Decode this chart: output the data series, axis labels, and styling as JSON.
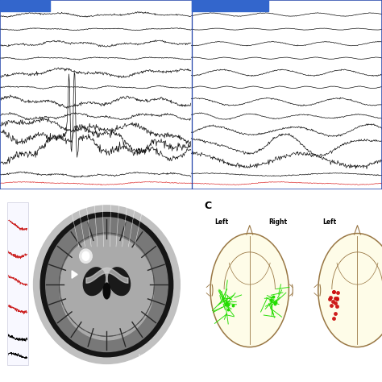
{
  "eeg_bg": "#f0f2f8",
  "eeg_line_color": "#111111",
  "eeg_red_color": "#dd3333",
  "header_color": "#3366cc",
  "divider_color": "#2244aa",
  "panel_border": "#3344aa",
  "panel_c_bg": "#fefce8",
  "green_color": "#22dd00",
  "red_dot_color": "#cc1111",
  "brain_outline_color": "#997744",
  "n_channels": 12,
  "n_pts": 700,
  "channel_amplitudes": [
    0.8,
    0.4,
    1.0,
    0.45,
    1.5,
    0.5,
    1.8,
    1.2,
    2.5,
    3.5,
    4.0,
    0.8
  ],
  "channel_base_freqs": [
    4,
    6,
    4,
    7,
    3.5,
    8,
    3,
    5,
    3.5,
    3,
    3.5,
    3
  ],
  "channel_high_freqs": [
    10,
    13,
    11,
    14,
    9,
    15,
    10,
    12,
    9,
    10,
    11,
    10
  ]
}
